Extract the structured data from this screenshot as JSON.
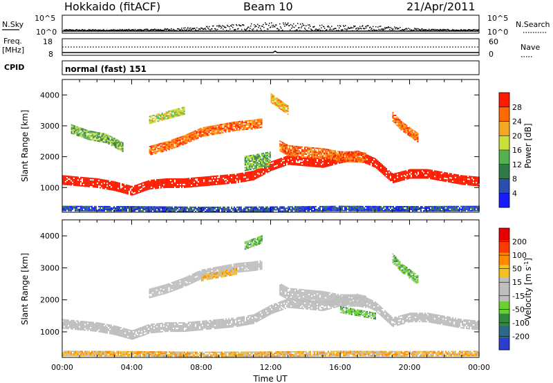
{
  "header": {
    "station": "Hokkaido (fitACF)",
    "beam": "Beam 10",
    "date": "21/Apr/2011"
  },
  "colors": {
    "power_scale": [
      "#1a1aff",
      "#2a4fb0",
      "#2f7a45",
      "#55b050",
      "#c8e03a",
      "#f5a623",
      "#ff6a00",
      "#ff1a00"
    ],
    "velocity_scale": [
      "#2a3fd0",
      "#2b6a8a",
      "#2f8a3a",
      "#6ad030",
      "#bebebe",
      "#bebebe",
      "#f5c020",
      "#ff8a00",
      "#ff3a00",
      "#e80000"
    ],
    "ground_scatter": "#bebebe"
  },
  "top_panels": {
    "noise": {
      "label": "N.Sky",
      "right_label": "N.Search",
      "left_ticks": [
        "10^5",
        "10^0"
      ],
      "right_ticks": [
        "10^5",
        "10^0"
      ]
    },
    "freq": {
      "label_line1": "Freq.",
      "label_line2": "[MHz]",
      "right_label": "Nave",
      "left_ticks": [
        "18",
        "8"
      ],
      "right_ticks": [
        "60",
        "0"
      ]
    },
    "cpid": {
      "label": "CPID",
      "value": "normal (fast) 151"
    }
  },
  "chart_data": [
    {
      "type": "heatmap",
      "name": "power",
      "ylabel": "Slant Range [km]",
      "xlabel": "",
      "y_ticks": [
        1000,
        2000,
        3000,
        4000
      ],
      "ylim": [
        200,
        4500
      ],
      "xlim": [
        0,
        24
      ],
      "colorbar": {
        "title": "Power [dB]",
        "ticks": [
          "28",
          "24",
          "20",
          "16",
          "12",
          "8",
          "4"
        ]
      },
      "bands": [
        {
          "x": [
            0,
            1,
            2,
            3,
            4,
            5,
            6,
            7,
            8,
            9,
            10,
            11,
            12,
            13,
            14,
            15,
            16,
            17,
            18,
            19,
            20,
            21,
            22,
            23,
            24
          ],
          "y": [
            1250,
            1200,
            1150,
            1050,
            900,
            1100,
            1150,
            1150,
            1200,
            1250,
            1300,
            1400,
            1700,
            1900,
            1850,
            1800,
            1950,
            2050,
            1800,
            1300,
            1450,
            1450,
            1350,
            1250,
            1200
          ],
          "thick": 300,
          "level": 7,
          "jitter": 1
        },
        {
          "x": [
            5,
            6,
            7,
            8,
            9,
            10,
            11,
            11.5
          ],
          "y": [
            2200,
            2350,
            2550,
            2800,
            2900,
            3000,
            3050,
            3100
          ],
          "thick": 300,
          "level": 6,
          "jitter": 2
        },
        {
          "x": [
            12.5,
            13,
            14,
            15,
            16,
            17,
            17.5
          ],
          "y": [
            2350,
            2200,
            2150,
            2100,
            2000,
            2000,
            1950
          ],
          "thick": 350,
          "level": 6,
          "jitter": 2
        },
        {
          "x": [
            10.5,
            11,
            11.5,
            12
          ],
          "y": [
            1800,
            1850,
            1900,
            1950
          ],
          "thick": 450,
          "level": 3,
          "jitter": 3
        },
        {
          "x": [
            19,
            19.5,
            20,
            20.5
          ],
          "y": [
            3300,
            3000,
            2800,
            2600
          ],
          "thick": 300,
          "level": 6,
          "jitter": 2
        },
        {
          "x": [
            0.5,
            1.5,
            2.5,
            3.5
          ],
          "y": [
            2900,
            2700,
            2600,
            2300
          ],
          "thick": 300,
          "level": 3,
          "jitter": 3
        },
        {
          "x": [
            5,
            6,
            7
          ],
          "y": [
            3200,
            3350,
            3500
          ],
          "thick": 250,
          "level": 4,
          "jitter": 3
        },
        {
          "x": [
            12,
            12.5,
            13
          ],
          "y": [
            3900,
            3700,
            3500
          ],
          "thick": 300,
          "level": 5,
          "jitter": 2
        },
        {
          "x": [
            0,
            4,
            8,
            12,
            16,
            20,
            24
          ],
          "y": [
            330,
            320,
            300,
            310,
            330,
            320,
            330
          ],
          "thick": 160,
          "level": 1,
          "jitter": 3
        }
      ]
    },
    {
      "type": "heatmap",
      "name": "velocity",
      "ylabel": "Slant Range [km]",
      "xlabel": "Time UT",
      "x_ticks": [
        "00:00",
        "04:00",
        "08:00",
        "12:00",
        "16:00",
        "20:00",
        "00:00"
      ],
      "y_ticks": [
        1000,
        2000,
        3000,
        4000
      ],
      "ylim": [
        200,
        4500
      ],
      "xlim": [
        0,
        24
      ],
      "colorbar": {
        "title": "Velocity [m s^-1]",
        "ticks": [
          "200",
          "100",
          "50",
          "15",
          "-15",
          "-50",
          "-100",
          "-200"
        ]
      },
      "bands": [
        {
          "x": [
            0,
            1,
            2,
            3,
            4,
            5,
            6,
            7,
            8,
            9,
            10,
            11,
            12,
            13,
            14,
            15,
            16,
            17,
            18,
            19,
            20,
            21,
            22,
            23,
            24
          ],
          "y": [
            1250,
            1200,
            1150,
            1050,
            900,
            1100,
            1150,
            1150,
            1200,
            1250,
            1300,
            1400,
            1700,
            1900,
            1850,
            1800,
            1950,
            2050,
            1800,
            1300,
            1450,
            1450,
            1350,
            1250,
            1200
          ],
          "thick": 300,
          "level": 4,
          "jitter": 1
        },
        {
          "x": [
            5,
            6,
            7,
            8,
            9,
            10,
            11,
            11.5
          ],
          "y": [
            2200,
            2350,
            2550,
            2800,
            2900,
            3000,
            3050,
            3100
          ],
          "thick": 300,
          "level": 4,
          "jitter": 1
        },
        {
          "x": [
            12.5,
            13,
            14,
            15,
            16,
            17,
            17.5
          ],
          "y": [
            2350,
            2200,
            2150,
            2100,
            2000,
            2000,
            1950
          ],
          "thick": 350,
          "level": 4,
          "jitter": 1
        },
        {
          "x": [
            8,
            9,
            10
          ],
          "y": [
            2700,
            2800,
            2900
          ],
          "thick": 200,
          "level": 6,
          "jitter": 2
        },
        {
          "x": [
            19,
            19.5,
            20,
            20.5
          ],
          "y": [
            3300,
            3000,
            2800,
            2600
          ],
          "thick": 300,
          "level": 3,
          "jitter": 2
        },
        {
          "x": [
            10.5,
            11,
            11.5
          ],
          "y": [
            3700,
            3800,
            3900
          ],
          "thick": 250,
          "level": 3,
          "jitter": 2
        },
        {
          "x": [
            16,
            17,
            18
          ],
          "y": [
            1700,
            1600,
            1500
          ],
          "thick": 200,
          "level": 3,
          "jitter": 2
        },
        {
          "x": [
            0,
            4,
            8,
            12,
            16,
            20,
            24
          ],
          "y": [
            330,
            320,
            300,
            310,
            330,
            320,
            330
          ],
          "thick": 160,
          "level": 6,
          "jitter": 3
        }
      ]
    }
  ],
  "cpid_mode": "normal (fast) 151"
}
